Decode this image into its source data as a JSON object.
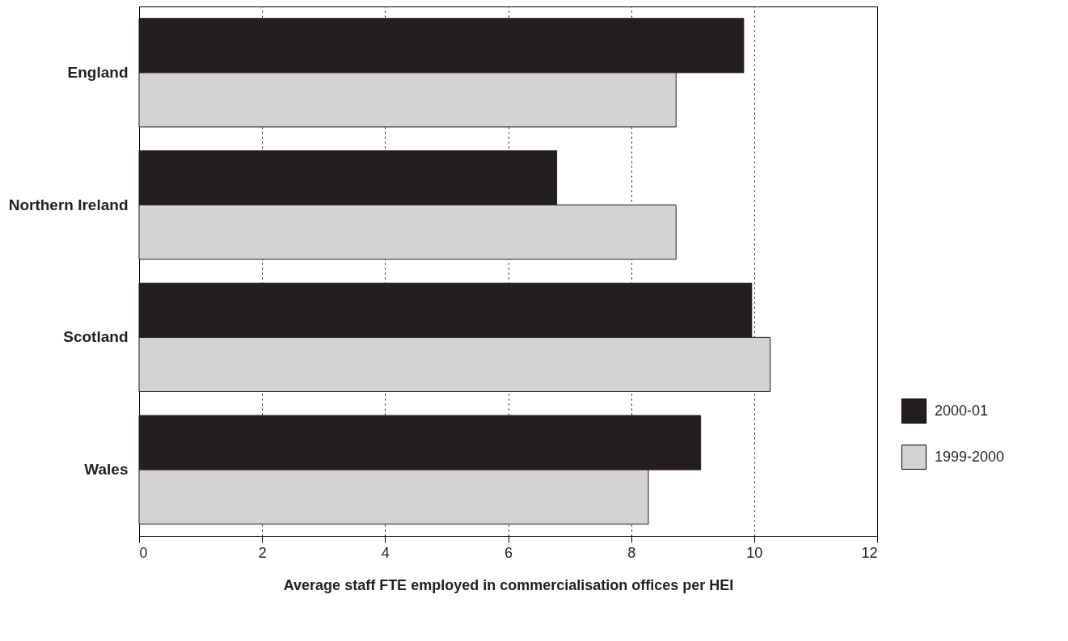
{
  "chart_data": {
    "type": "bar",
    "orientation": "horizontal",
    "xlabel": "Average staff FTE employed in commercialisation offices per HEI",
    "categories": [
      "England",
      "Northern Ireland",
      "Scotland",
      "Wales"
    ],
    "series": [
      {
        "name": "2000-01",
        "color": "#231f20",
        "values": [
          9.83,
          6.79,
          9.96,
          9.13
        ]
      },
      {
        "name": "1999-2000",
        "color": "#d1d3d4",
        "values": [
          8.73,
          8.73,
          10.26,
          8.28
        ]
      }
    ],
    "xlim": [
      0,
      12
    ],
    "xticks": [
      0,
      2,
      4,
      6,
      8,
      10,
      12
    ],
    "grid": "x",
    "legend": "bottom right"
  }
}
